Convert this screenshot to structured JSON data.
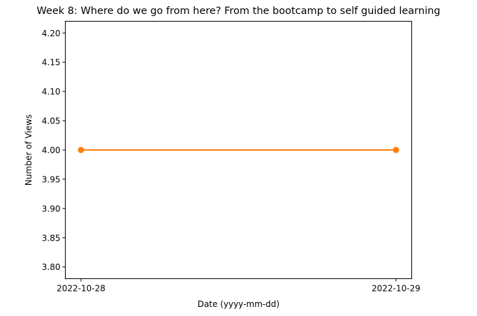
{
  "chart_data": {
    "type": "line",
    "title": "Week 8: Where do we go from here? From the bootcamp to self guided learning",
    "xlabel": "Date (yyyy-mm-dd)",
    "ylabel": "Number of Views",
    "x": [
      "2022-10-28",
      "2022-10-29"
    ],
    "series": [
      {
        "values": [
          4,
          4
        ],
        "color": "#ff7f0e",
        "marker": "circle"
      }
    ],
    "ylim": [
      3.78,
      4.22
    ],
    "yticks": [
      "3.80",
      "3.85",
      "3.90",
      "3.95",
      "4.00",
      "4.05",
      "4.10",
      "4.15",
      "4.20"
    ],
    "grid": false,
    "legend": "none"
  }
}
